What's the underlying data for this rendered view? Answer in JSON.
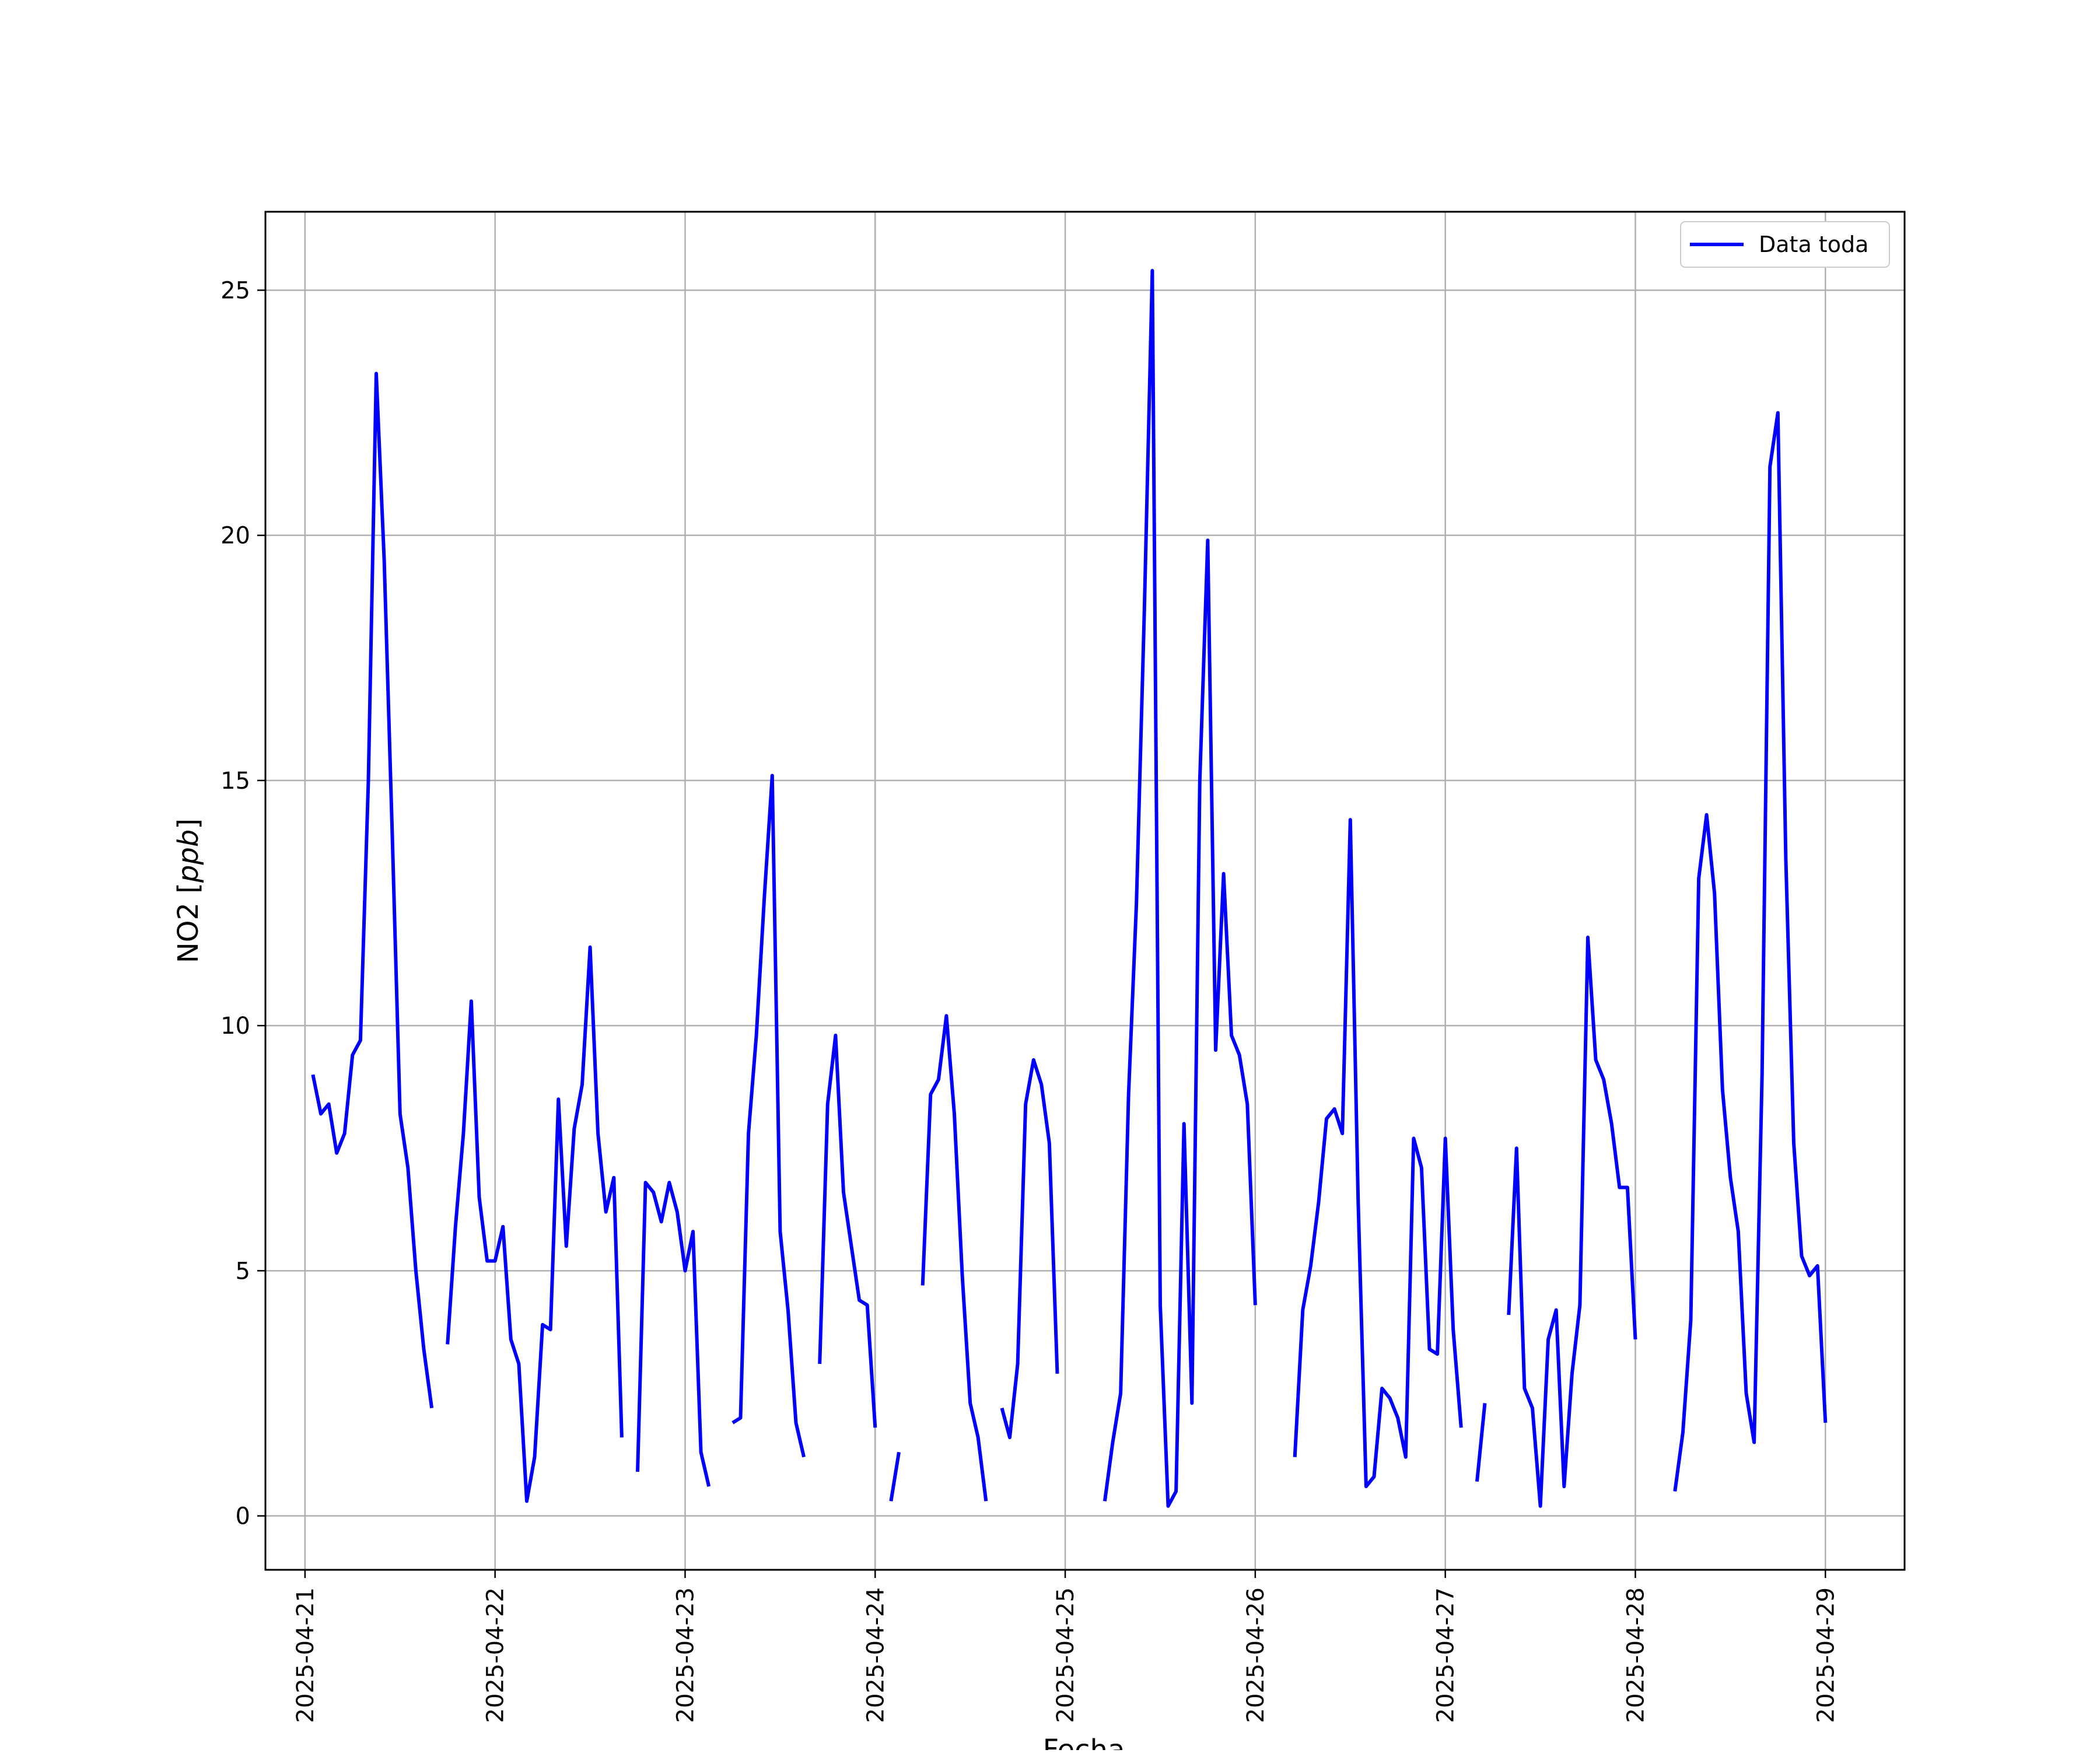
{
  "chart_data": {
    "type": "line",
    "xlabel": "Fecha",
    "ylabel_prefix": "NO2 [",
    "ylabel_unit": "ppb",
    "ylabel_suffix": "]",
    "ylim": [
      -1.1,
      26.6
    ],
    "xlim": [
      "2025-04-20T19:00",
      "2025-04-29T10:00"
    ],
    "grid": true,
    "legend_position": "top-right",
    "line_color": "#0000ff",
    "x_ticks": [
      "2025-04-21",
      "2025-04-22",
      "2025-04-23",
      "2025-04-24",
      "2025-04-25",
      "2025-04-26",
      "2025-04-27",
      "2025-04-28",
      "2025-04-29"
    ],
    "y_ticks": [
      0,
      5,
      10,
      15,
      20,
      25
    ],
    "series": [
      {
        "name": "Data toda",
        "segments": [
          [
            [
              "2025-04-21T01:00",
              9.0
            ],
            [
              "2025-04-21T02:00",
              8.2
            ],
            [
              "2025-04-21T03:00",
              8.4
            ],
            [
              "2025-04-21T04:00",
              7.4
            ],
            [
              "2025-04-21T05:00",
              7.8
            ],
            [
              "2025-04-21T06:00",
              9.4
            ],
            [
              "2025-04-21T07:00",
              9.7
            ],
            [
              "2025-04-21T08:00",
              15.0
            ],
            [
              "2025-04-21T09:00",
              23.3
            ],
            [
              "2025-04-21T10:00",
              19.5
            ],
            [
              "2025-04-21T11:00",
              14.0
            ],
            [
              "2025-04-21T12:00",
              8.2
            ],
            [
              "2025-04-21T13:00",
              7.1
            ],
            [
              "2025-04-21T14:00",
              5.0
            ],
            [
              "2025-04-21T15:00",
              3.4
            ],
            [
              "2025-04-21T16:00",
              2.2
            ]
          ],
          [
            [
              "2025-04-21T18:00",
              3.5
            ],
            [
              "2025-04-21T19:00",
              5.9
            ],
            [
              "2025-04-21T20:00",
              7.8
            ],
            [
              "2025-04-21T21:00",
              10.5
            ],
            [
              "2025-04-21T22:00",
              6.5
            ],
            [
              "2025-04-21T23:00",
              5.2
            ],
            [
              "2025-04-22T00:00",
              5.2
            ],
            [
              "2025-04-22T01:00",
              5.9
            ],
            [
              "2025-04-22T02:00",
              3.6
            ],
            [
              "2025-04-22T03:00",
              3.1
            ],
            [
              "2025-04-22T04:00",
              0.3
            ],
            [
              "2025-04-22T05:00",
              1.2
            ],
            [
              "2025-04-22T06:00",
              3.9
            ],
            [
              "2025-04-22T07:00",
              3.8
            ],
            [
              "2025-04-22T08:00",
              8.5
            ],
            [
              "2025-04-22T09:00",
              5.5
            ],
            [
              "2025-04-22T10:00",
              7.9
            ],
            [
              "2025-04-22T11:00",
              8.8
            ],
            [
              "2025-04-22T12:00",
              11.6
            ],
            [
              "2025-04-22T13:00",
              7.8
            ],
            [
              "2025-04-22T14:00",
              6.2
            ],
            [
              "2025-04-22T15:00",
              6.9
            ],
            [
              "2025-04-22T16:00",
              1.6
            ]
          ],
          [
            [
              "2025-04-22T18:00",
              0.9
            ],
            [
              "2025-04-22T19:00",
              6.8
            ],
            [
              "2025-04-22T20:00",
              6.6
            ],
            [
              "2025-04-22T21:00",
              6.0
            ],
            [
              "2025-04-22T22:00",
              6.8
            ],
            [
              "2025-04-22T23:00",
              6.2
            ],
            [
              "2025-04-23T00:00",
              5.0
            ],
            [
              "2025-04-23T01:00",
              5.8
            ],
            [
              "2025-04-23T02:00",
              1.3
            ],
            [
              "2025-04-23T03:00",
              0.6
            ]
          ],
          [
            [
              "2025-04-23T06:00",
              1.9
            ],
            [
              "2025-04-23T07:00",
              2.0
            ],
            [
              "2025-04-23T08:00",
              7.8
            ],
            [
              "2025-04-23T09:00",
              9.8
            ],
            [
              "2025-04-23T10:00",
              12.6
            ],
            [
              "2025-04-23T11:00",
              15.1
            ],
            [
              "2025-04-23T12:00",
              5.8
            ],
            [
              "2025-04-23T13:00",
              4.2
            ],
            [
              "2025-04-23T14:00",
              1.9
            ],
            [
              "2025-04-23T15:00",
              1.2
            ]
          ],
          [
            [
              "2025-04-23T17:00",
              3.1
            ],
            [
              "2025-04-23T18:00",
              8.4
            ],
            [
              "2025-04-23T19:00",
              9.8
            ],
            [
              "2025-04-23T20:00",
              6.6
            ],
            [
              "2025-04-23T21:00",
              5.5
            ],
            [
              "2025-04-23T22:00",
              4.4
            ],
            [
              "2025-04-23T23:00",
              4.3
            ],
            [
              "2025-04-24T00:00",
              1.8
            ]
          ],
          [
            [
              "2025-04-24T02:00",
              0.3
            ],
            [
              "2025-04-24T03:00",
              1.3
            ]
          ],
          [
            [
              "2025-04-24T06:00",
              4.7
            ],
            [
              "2025-04-24T07:00",
              8.6
            ],
            [
              "2025-04-24T08:00",
              8.9
            ],
            [
              "2025-04-24T09:00",
              10.2
            ],
            [
              "2025-04-24T10:00",
              8.2
            ],
            [
              "2025-04-24T11:00",
              4.9
            ],
            [
              "2025-04-24T12:00",
              2.3
            ],
            [
              "2025-04-24T13:00",
              1.6
            ],
            [
              "2025-04-24T14:00",
              0.3
            ]
          ],
          [
            [
              "2025-04-24T16:00",
              2.2
            ],
            [
              "2025-04-24T17:00",
              1.6
            ],
            [
              "2025-04-24T18:00",
              3.1
            ],
            [
              "2025-04-24T19:00",
              8.4
            ],
            [
              "2025-04-24T20:00",
              9.3
            ],
            [
              "2025-04-24T21:00",
              8.8
            ],
            [
              "2025-04-24T22:00",
              7.6
            ],
            [
              "2025-04-24T23:00",
              2.9
            ]
          ],
          [
            [
              "2025-04-25T05:00",
              0.3
            ],
            [
              "2025-04-25T06:00",
              1.5
            ],
            [
              "2025-04-25T07:00",
              2.5
            ],
            [
              "2025-04-25T08:00",
              8.6
            ],
            [
              "2025-04-25T09:00",
              12.5
            ],
            [
              "2025-04-25T10:00",
              18.5
            ],
            [
              "2025-04-25T11:00",
              25.4
            ],
            [
              "2025-04-25T12:00",
              4.3
            ],
            [
              "2025-04-25T13:00",
              0.2
            ],
            [
              "2025-04-25T14:00",
              0.5
            ],
            [
              "2025-04-25T15:00",
              8.0
            ],
            [
              "2025-04-25T16:00",
              2.3
            ],
            [
              "2025-04-25T17:00",
              15.0
            ],
            [
              "2025-04-25T18:00",
              19.9
            ],
            [
              "2025-04-25T19:00",
              9.5
            ],
            [
              "2025-04-25T20:00",
              13.1
            ],
            [
              "2025-04-25T21:00",
              9.8
            ],
            [
              "2025-04-25T22:00",
              9.4
            ],
            [
              "2025-04-25T23:00",
              8.4
            ],
            [
              "2025-04-26T00:00",
              4.3
            ]
          ],
          [
            [
              "2025-04-26T05:00",
              1.2
            ],
            [
              "2025-04-26T06:00",
              4.2
            ],
            [
              "2025-04-26T07:00",
              5.1
            ],
            [
              "2025-04-26T08:00",
              6.4
            ],
            [
              "2025-04-26T09:00",
              8.1
            ],
            [
              "2025-04-26T10:00",
              8.3
            ],
            [
              "2025-04-26T11:00",
              7.8
            ],
            [
              "2025-04-26T12:00",
              14.2
            ],
            [
              "2025-04-26T13:00",
              6.4
            ],
            [
              "2025-04-26T14:00",
              0.6
            ],
            [
              "2025-04-26T15:00",
              0.8
            ],
            [
              "2025-04-26T16:00",
              2.6
            ],
            [
              "2025-04-26T17:00",
              2.4
            ],
            [
              "2025-04-26T18:00",
              2.0
            ],
            [
              "2025-04-26T19:00",
              1.2
            ],
            [
              "2025-04-26T20:00",
              7.7
            ],
            [
              "2025-04-26T21:00",
              7.1
            ],
            [
              "2025-04-26T22:00",
              3.4
            ],
            [
              "2025-04-26T23:00",
              3.3
            ],
            [
              "2025-04-27T00:00",
              7.7
            ],
            [
              "2025-04-27T01:00",
              3.8
            ],
            [
              "2025-04-27T02:00",
              1.8
            ]
          ],
          [
            [
              "2025-04-27T04:00",
              0.7
            ],
            [
              "2025-04-27T05:00",
              2.3
            ]
          ],
          [
            [
              "2025-04-27T08:00",
              4.1
            ],
            [
              "2025-04-27T09:00",
              7.5
            ],
            [
              "2025-04-27T10:00",
              2.6
            ],
            [
              "2025-04-27T11:00",
              2.2
            ],
            [
              "2025-04-27T12:00",
              0.2
            ],
            [
              "2025-04-27T13:00",
              3.6
            ],
            [
              "2025-04-27T14:00",
              4.2
            ],
            [
              "2025-04-27T15:00",
              0.6
            ],
            [
              "2025-04-27T16:00",
              2.9
            ],
            [
              "2025-04-27T17:00",
              4.3
            ],
            [
              "2025-04-27T18:00",
              11.8
            ],
            [
              "2025-04-27T19:00",
              9.3
            ],
            [
              "2025-04-27T20:00",
              8.9
            ],
            [
              "2025-04-27T21:00",
              8.0
            ],
            [
              "2025-04-27T22:00",
              6.7
            ],
            [
              "2025-04-27T23:00",
              6.7
            ],
            [
              "2025-04-28T00:00",
              3.6
            ]
          ],
          [
            [
              "2025-04-28T05:00",
              0.5
            ],
            [
              "2025-04-28T06:00",
              1.7
            ],
            [
              "2025-04-28T07:00",
              4.0
            ],
            [
              "2025-04-28T08:00",
              13.0
            ],
            [
              "2025-04-28T09:00",
              14.3
            ],
            [
              "2025-04-28T10:00",
              12.7
            ],
            [
              "2025-04-28T11:00",
              8.7
            ],
            [
              "2025-04-28T12:00",
              6.9
            ],
            [
              "2025-04-28T13:00",
              5.8
            ],
            [
              "2025-04-28T14:00",
              2.5
            ],
            [
              "2025-04-28T15:00",
              1.5
            ],
            [
              "2025-04-28T16:00",
              9.0
            ],
            [
              "2025-04-28T17:00",
              21.4
            ],
            [
              "2025-04-28T18:00",
              22.5
            ],
            [
              "2025-04-28T19:00",
              13.4
            ],
            [
              "2025-04-28T20:00",
              7.6
            ],
            [
              "2025-04-28T21:00",
              5.3
            ],
            [
              "2025-04-28T22:00",
              4.9
            ],
            [
              "2025-04-28T23:00",
              5.1
            ],
            [
              "2025-04-29T00:00",
              1.9
            ]
          ]
        ]
      }
    ]
  }
}
